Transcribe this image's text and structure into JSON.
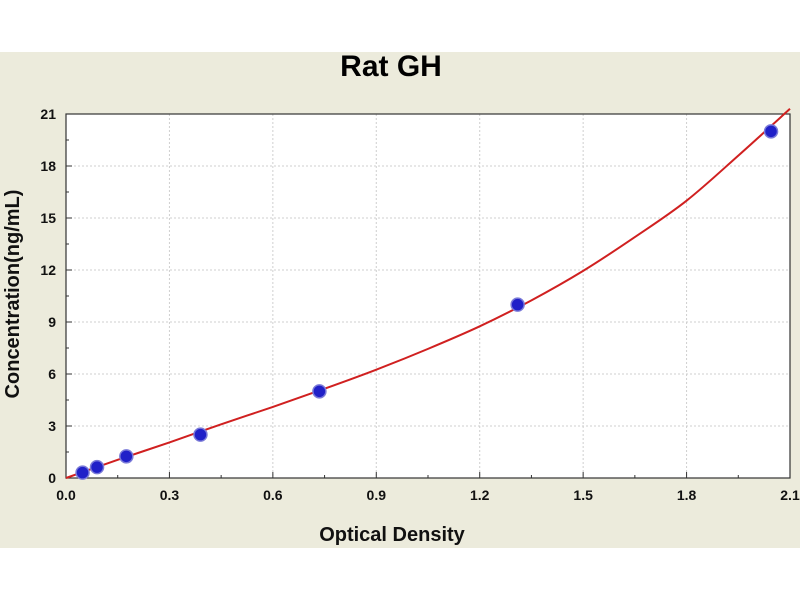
{
  "chart_data": {
    "type": "scatter",
    "title": "Rat GH",
    "xlabel": "Optical Density",
    "ylabel": "Concentration(ng/mL)",
    "xlim": [
      0,
      2.1
    ],
    "ylim": [
      0,
      21
    ],
    "xticks": [
      "0.0",
      "0.3",
      "0.6",
      "0.9",
      "1.2",
      "1.5",
      "1.8",
      "2.1"
    ],
    "yticks": [
      "0",
      "3",
      "6",
      "9",
      "12",
      "15",
      "18",
      "21"
    ],
    "grid": true,
    "legend": "none",
    "series": [
      {
        "type": "scatter",
        "x": [
          0.048,
          0.09,
          0.175,
          0.39,
          0.735,
          1.31,
          2.045
        ],
        "y": [
          0.31,
          0.625,
          1.25,
          2.5,
          5,
          10,
          20
        ]
      },
      {
        "type": "line",
        "x": [
          0,
          0.15,
          0.3,
          0.45,
          0.6,
          0.75,
          0.9,
          1.05,
          1.2,
          1.35,
          1.5,
          1.65,
          1.8,
          1.95,
          2.1
        ],
        "y": [
          0,
          1.05,
          2.05,
          3.1,
          4.1,
          5.15,
          6.25,
          7.45,
          8.75,
          10.25,
          11.95,
          13.9,
          16.0,
          18.6,
          21.3
        ]
      }
    ],
    "colors": {
      "marker_fill": "#2020c8",
      "marker_stroke": "#7a7ad8",
      "curve": "#d02020",
      "background": "#ecebdc",
      "plot_area": "#ffffff"
    }
  }
}
